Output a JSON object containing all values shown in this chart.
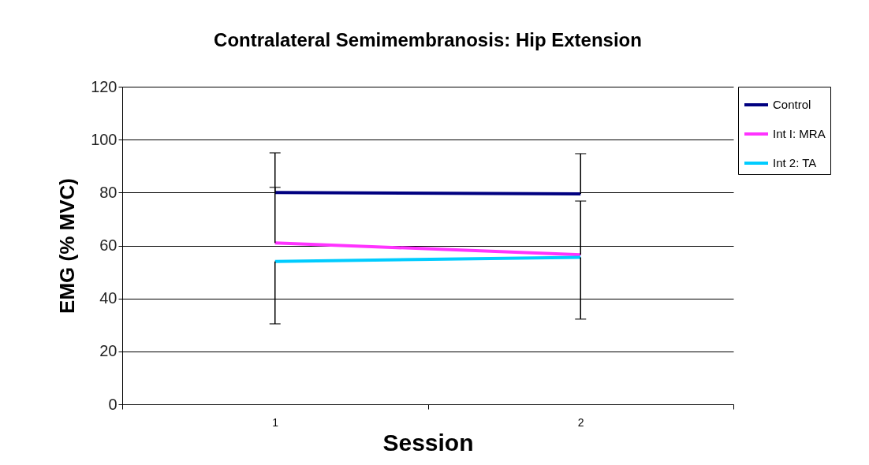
{
  "chart_data": {
    "type": "line",
    "title": "Contralateral Semimembranosis: Hip Extension",
    "xlabel": "Session",
    "ylabel": "EMG (% MVC)",
    "categories": [
      "1",
      "2"
    ],
    "series": [
      {
        "name": "Control",
        "color": "#000080",
        "values": [
          80,
          79.5
        ],
        "errors": [
          [
            80,
            95
          ],
          [
            79.5,
            94.7
          ]
        ]
      },
      {
        "name": "Int I: MRA",
        "color": "#ff33ff",
        "values": [
          61,
          56.5
        ],
        "errors": [
          [
            61,
            82
          ],
          [
            56.5,
            76.8
          ]
        ]
      },
      {
        "name": "Int 2: TA",
        "color": "#00ccff",
        "values": [
          54,
          55.5
        ],
        "errors": [
          [
            30.4,
            54
          ],
          [
            32.2,
            55.5
          ]
        ]
      }
    ],
    "ylim": [
      0,
      120
    ],
    "yticks": [
      0,
      20,
      40,
      60,
      80,
      100,
      120
    ],
    "grid": "y",
    "legend": "right",
    "marker": "none"
  }
}
